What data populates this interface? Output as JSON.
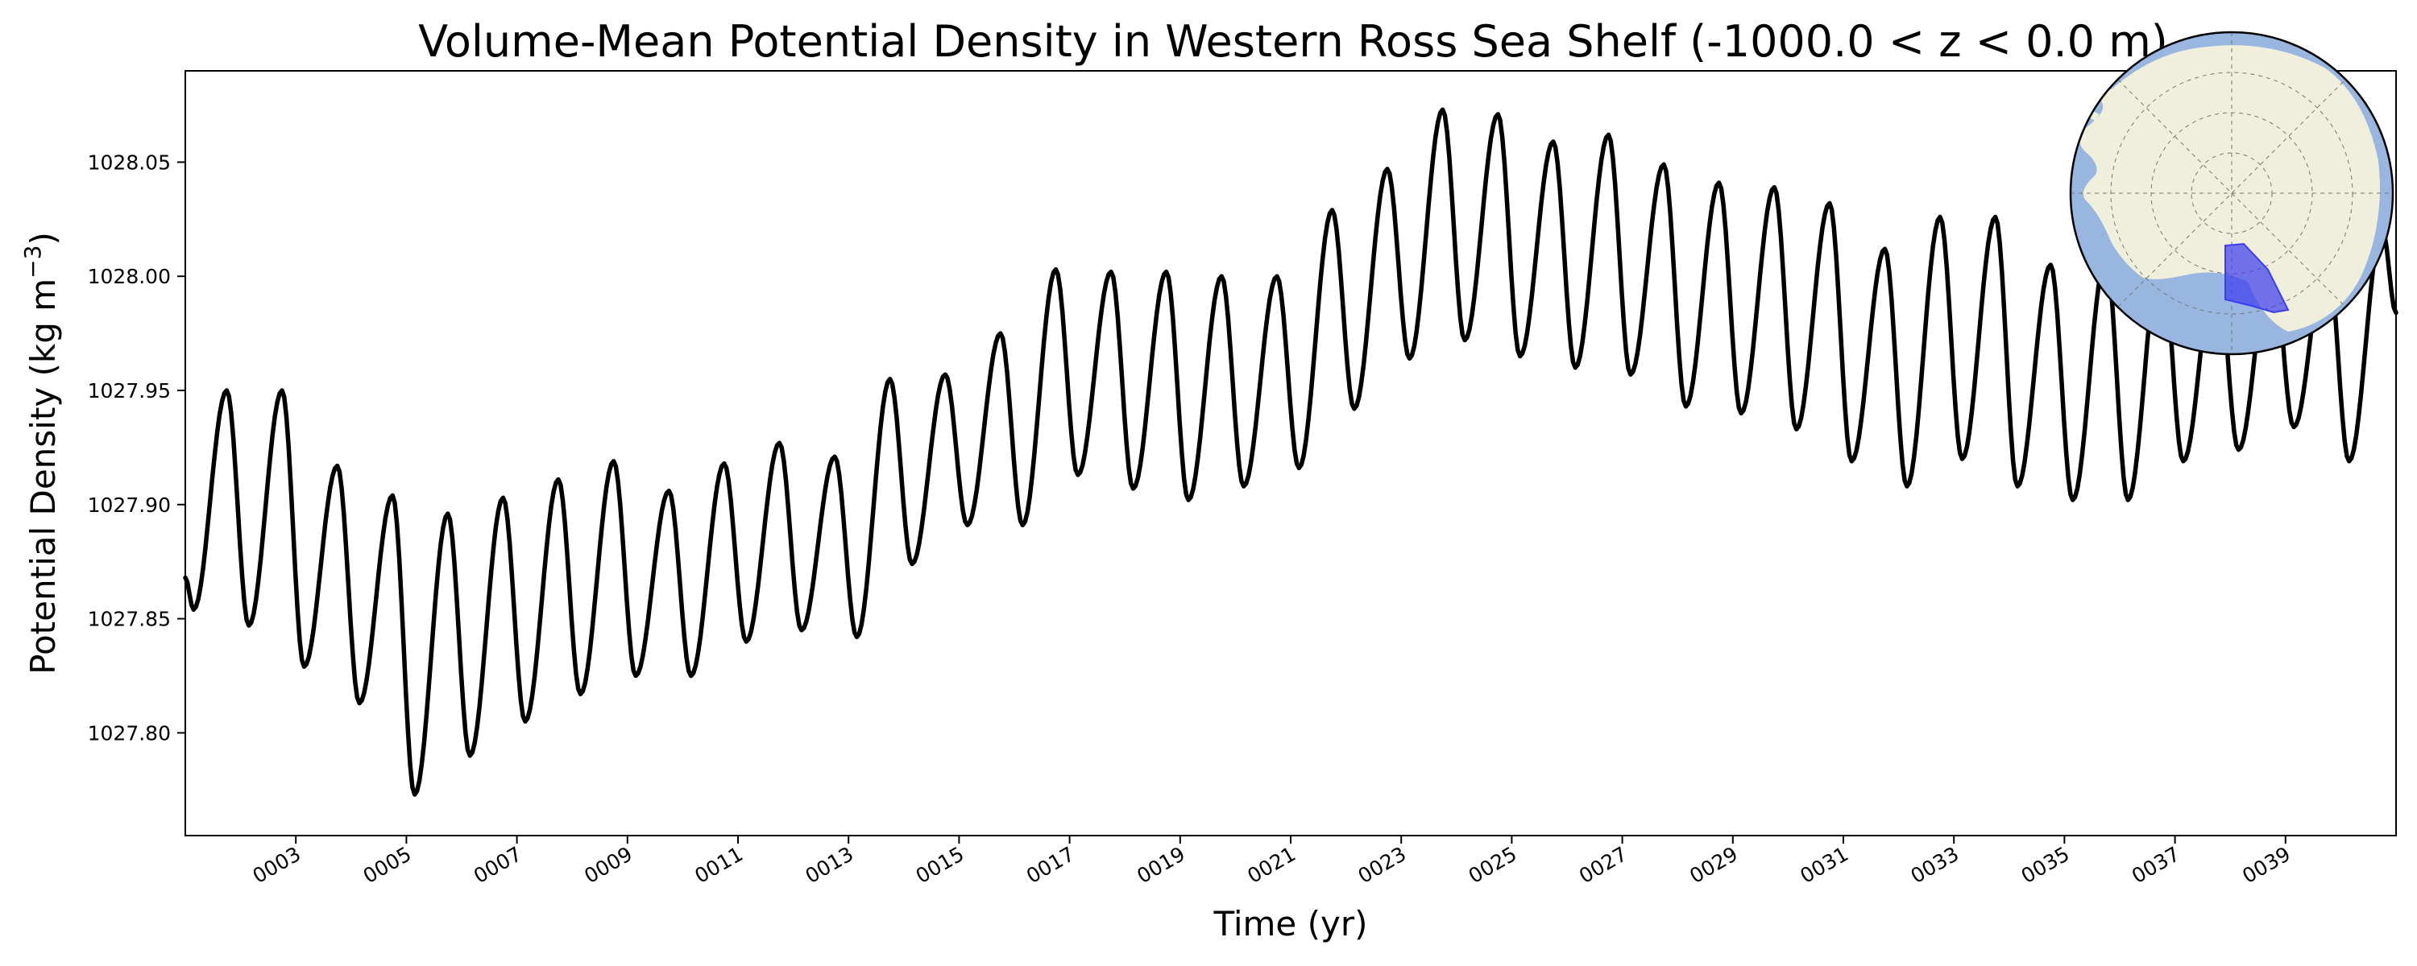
{
  "chart_data": {
    "type": "line",
    "title": "Volume-Mean Potential Density in Western Ross Sea Shelf (-1000.0 < z < 0.0 m)",
    "xlabel": "Time (yr)",
    "ylabel_main": "Potential Density (kg m",
    "ylabel_sup": "−3",
    "ylabel_close": ")",
    "xlim": [
      1.0,
      41.0
    ],
    "ylim": [
      1027.755,
      1028.09
    ],
    "x_ticks": [
      3,
      5,
      7,
      9,
      11,
      13,
      15,
      17,
      19,
      21,
      23,
      25,
      27,
      29,
      31,
      33,
      35,
      37,
      39
    ],
    "x_tick_labels": [
      "0003",
      "0005",
      "0007",
      "0009",
      "0011",
      "0013",
      "0015",
      "0017",
      "0019",
      "0021",
      "0023",
      "0025",
      "0027",
      "0029",
      "0031",
      "0033",
      "0035",
      "0037",
      "0039"
    ],
    "y_ticks": [
      1027.8,
      1027.85,
      1027.9,
      1027.95,
      1028.0,
      1028.05
    ],
    "y_tick_labels": [
      "1027.80",
      "1027.85",
      "1027.90",
      "1027.95",
      "1028.00",
      "1028.05"
    ],
    "series": [
      {
        "line_color": "#000000",
        "cycles": [
          {
            "max_x": 1.75,
            "max": 1027.95,
            "min_x": 2.15,
            "min": 1027.847
          },
          {
            "max_x": 2.75,
            "max": 1027.95,
            "min_x": 3.15,
            "min": 1027.829
          },
          {
            "max_x": 3.75,
            "max": 1027.917,
            "min_x": 4.15,
            "min": 1027.813
          },
          {
            "max_x": 4.75,
            "max": 1027.904,
            "min_x": 5.15,
            "min": 1027.773
          },
          {
            "max_x": 5.75,
            "max": 1027.896,
            "min_x": 6.15,
            "min": 1027.79
          },
          {
            "max_x": 6.75,
            "max": 1027.903,
            "min_x": 7.15,
            "min": 1027.805
          },
          {
            "max_x": 7.75,
            "max": 1027.911,
            "min_x": 8.15,
            "min": 1027.817
          },
          {
            "max_x": 8.75,
            "max": 1027.919,
            "min_x": 9.15,
            "min": 1027.825
          },
          {
            "max_x": 9.75,
            "max": 1027.906,
            "min_x": 10.15,
            "min": 1027.825
          },
          {
            "max_x": 10.75,
            "max": 1027.918,
            "min_x": 11.15,
            "min": 1027.84
          },
          {
            "max_x": 11.75,
            "max": 1027.927,
            "min_x": 12.15,
            "min": 1027.845
          },
          {
            "max_x": 12.75,
            "max": 1027.921,
            "min_x": 13.15,
            "min": 1027.842
          },
          {
            "max_x": 13.75,
            "max": 1027.955,
            "min_x": 14.15,
            "min": 1027.874
          },
          {
            "max_x": 14.75,
            "max": 1027.957,
            "min_x": 15.15,
            "min": 1027.891
          },
          {
            "max_x": 15.75,
            "max": 1027.975,
            "min_x": 16.15,
            "min": 1027.891
          },
          {
            "max_x": 16.75,
            "max": 1028.003,
            "min_x": 17.15,
            "min": 1027.913
          },
          {
            "max_x": 17.75,
            "max": 1028.002,
            "min_x": 18.15,
            "min": 1027.907
          },
          {
            "max_x": 18.75,
            "max": 1028.002,
            "min_x": 19.15,
            "min": 1027.902
          },
          {
            "max_x": 19.75,
            "max": 1028.0,
            "min_x": 20.15,
            "min": 1027.908
          },
          {
            "max_x": 20.75,
            "max": 1028.0,
            "min_x": 21.15,
            "min": 1027.916
          },
          {
            "max_x": 21.75,
            "max": 1028.029,
            "min_x": 22.15,
            "min": 1027.942
          },
          {
            "max_x": 22.75,
            "max": 1028.047,
            "min_x": 23.15,
            "min": 1027.964
          },
          {
            "max_x": 23.75,
            "max": 1028.073,
            "min_x": 24.15,
            "min": 1027.972
          },
          {
            "max_x": 24.75,
            "max": 1028.071,
            "min_x": 25.15,
            "min": 1027.965
          },
          {
            "max_x": 25.75,
            "max": 1028.059,
            "min_x": 26.15,
            "min": 1027.96
          },
          {
            "max_x": 26.75,
            "max": 1028.062,
            "min_x": 27.15,
            "min": 1027.957
          },
          {
            "max_x": 27.75,
            "max": 1028.049,
            "min_x": 28.15,
            "min": 1027.943
          },
          {
            "max_x": 28.75,
            "max": 1028.041,
            "min_x": 29.15,
            "min": 1027.94
          },
          {
            "max_x": 29.75,
            "max": 1028.039,
            "min_x": 30.15,
            "min": 1027.933
          },
          {
            "max_x": 30.75,
            "max": 1028.032,
            "min_x": 31.15,
            "min": 1027.919
          },
          {
            "max_x": 31.75,
            "max": 1028.012,
            "min_x": 32.15,
            "min": 1027.908
          },
          {
            "max_x": 32.75,
            "max": 1028.026,
            "min_x": 33.15,
            "min": 1027.92
          },
          {
            "max_x": 33.75,
            "max": 1028.026,
            "min_x": 34.15,
            "min": 1027.908
          },
          {
            "max_x": 34.75,
            "max": 1028.005,
            "min_x": 35.15,
            "min": 1027.902
          },
          {
            "max_x": 35.75,
            "max": 1028.008,
            "min_x": 36.15,
            "min": 1027.902
          },
          {
            "max_x": 36.75,
            "max": 1028.012,
            "min_x": 37.15,
            "min": 1027.919
          },
          {
            "max_x": 37.75,
            "max": 1028.008,
            "min_x": 38.15,
            "min": 1027.924
          },
          {
            "max_x": 38.75,
            "max": 1028.01,
            "min_x": 39.15,
            "min": 1027.934
          },
          {
            "max_x": 39.75,
            "max": 1028.012,
            "min_x": 40.15,
            "min": 1027.919
          },
          {
            "max_x": 40.75,
            "max": 1028.021
          }
        ],
        "start_x": 1.0,
        "start_value": 1027.868,
        "first_min_x": 1.15,
        "first_min": 1027.854,
        "end_x": 41.0,
        "end_value": 1027.984
      }
    ],
    "grid": false,
    "legend": "none",
    "inset_map": {
      "description": "south polar stereographic",
      "ocean_color": "#98b6df",
      "land_color": "#efefdb",
      "region_color": "#3c3cf0"
    }
  }
}
